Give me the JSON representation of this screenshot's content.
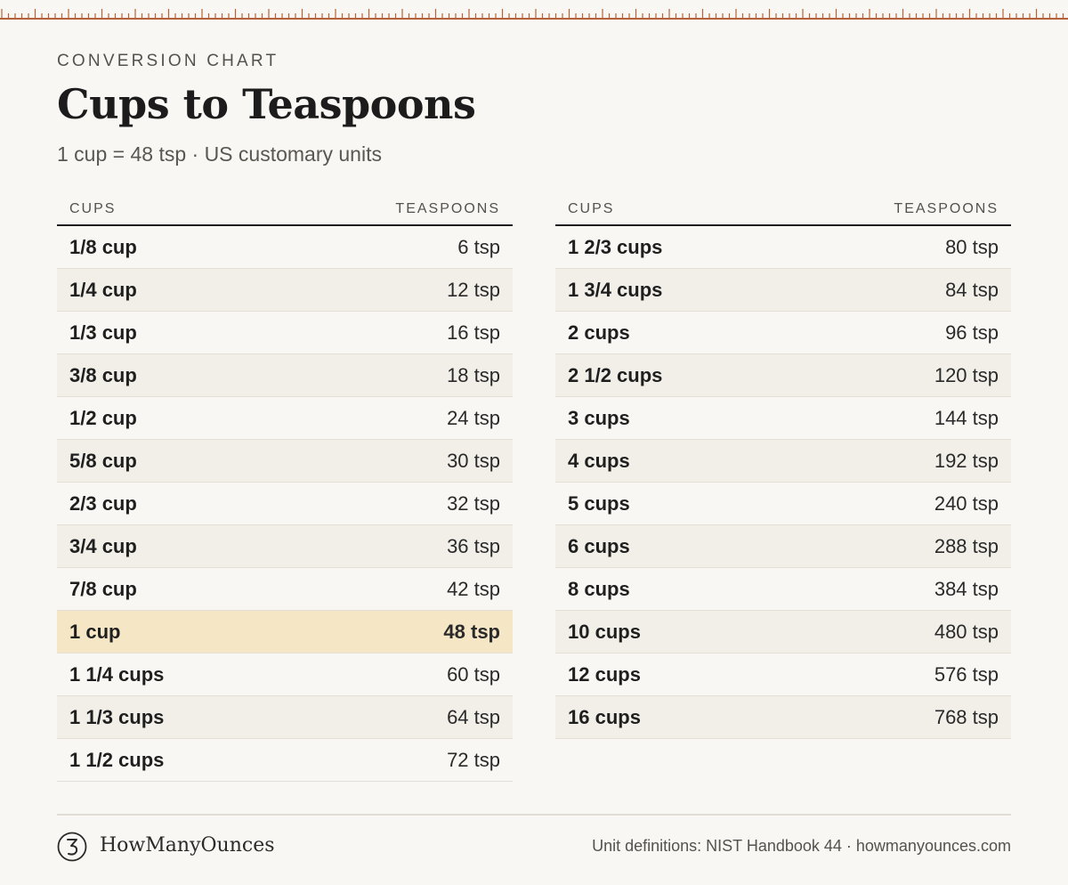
{
  "header": {
    "eyebrow": "CONVERSION CHART",
    "title": "Cups to Teaspoons",
    "subtitle": "1 cup = 48 tsp · US customary units"
  },
  "columns": {
    "cups": "CUPS",
    "tsp": "TEASPOONS"
  },
  "left_rows": [
    {
      "cups": "1/8 cup",
      "tsp": "6 tsp"
    },
    {
      "cups": "1/4 cup",
      "tsp": "12 tsp"
    },
    {
      "cups": "1/3 cup",
      "tsp": "16 tsp"
    },
    {
      "cups": "3/8 cup",
      "tsp": "18 tsp"
    },
    {
      "cups": "1/2 cup",
      "tsp": "24 tsp"
    },
    {
      "cups": "5/8 cup",
      "tsp": "30 tsp"
    },
    {
      "cups": "2/3 cup",
      "tsp": "32 tsp"
    },
    {
      "cups": "3/4 cup",
      "tsp": "36 tsp"
    },
    {
      "cups": "7/8 cup",
      "tsp": "42 tsp"
    },
    {
      "cups": "1 cup",
      "tsp": "48 tsp",
      "highlight": true
    },
    {
      "cups": "1 1/4 cups",
      "tsp": "60 tsp"
    },
    {
      "cups": "1 1/3 cups",
      "tsp": "64 tsp"
    },
    {
      "cups": "1 1/2 cups",
      "tsp": "72 tsp"
    }
  ],
  "right_rows": [
    {
      "cups": "1 2/3 cups",
      "tsp": "80 tsp"
    },
    {
      "cups": "1 3/4 cups",
      "tsp": "84 tsp"
    },
    {
      "cups": "2 cups",
      "tsp": "96 tsp"
    },
    {
      "cups": "2 1/2 cups",
      "tsp": "120 tsp"
    },
    {
      "cups": "3 cups",
      "tsp": "144 tsp"
    },
    {
      "cups": "4 cups",
      "tsp": "192 tsp"
    },
    {
      "cups": "5 cups",
      "tsp": "240 tsp"
    },
    {
      "cups": "6 cups",
      "tsp": "288 tsp"
    },
    {
      "cups": "8 cups",
      "tsp": "384 tsp"
    },
    {
      "cups": "10 cups",
      "tsp": "480 tsp"
    },
    {
      "cups": "12 cups",
      "tsp": "576 tsp"
    },
    {
      "cups": "16 cups",
      "tsp": "768 tsp"
    }
  ],
  "footer": {
    "brand": "HowManyOunces",
    "logo_icon": "ounce-mark-icon",
    "source": "Unit definitions: NIST Handbook 44 · howmanyounces.com"
  },
  "colors": {
    "accent": "#b5623a",
    "highlight": "#f5e6c6",
    "background": "#f9f7f3"
  }
}
